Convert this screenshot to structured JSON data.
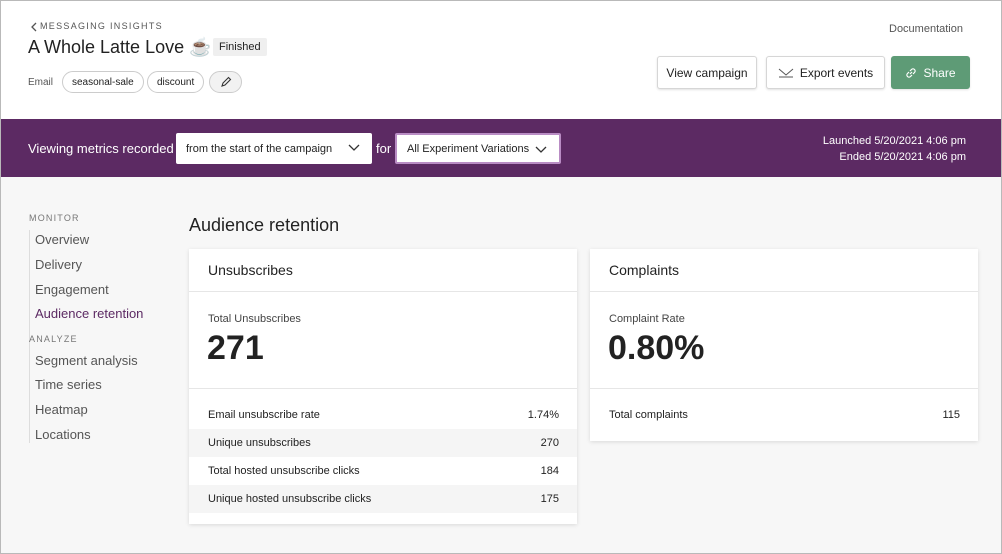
{
  "header": {
    "breadcrumb": "MESSAGING INSIGHTS",
    "title": "A Whole Latte Love ☕",
    "status": "Finished",
    "channel": "Email",
    "tags": [
      "seasonal-sale",
      "discount"
    ],
    "documentation": "Documentation",
    "buttons": [
      "View campaign",
      "Export events",
      "Share"
    ]
  },
  "filter_bar": {
    "label": "Viewing metrics recorded",
    "time_range": "from the start of the campaign",
    "connector": "for",
    "variation": "All Experiment Variations",
    "launched": "Launched 5/20/2021 4:06 pm",
    "ended": "Ended 5/20/2021 4:06 pm"
  },
  "sidebar": {
    "sections": [
      {
        "title": "MONITOR",
        "items": [
          "Overview",
          "Delivery",
          "Engagement",
          "Audience retention"
        ]
      },
      {
        "title": "ANALYZE",
        "items": [
          "Segment analysis",
          "Time series",
          "Heatmap",
          "Locations"
        ]
      }
    ]
  },
  "content": {
    "heading": "Audience retention",
    "cards": [
      {
        "title": "Unsubscribes",
        "metric_label": "Total Unsubscribes",
        "metric_value": "271",
        "rows": [
          [
            "Email unsubscribe rate",
            "1.74%"
          ],
          [
            "Unique unsubscribes",
            "270"
          ],
          [
            "Total hosted unsubscribe clicks",
            "184"
          ],
          [
            "Unique hosted unsubscribe clicks",
            "175"
          ]
        ]
      },
      {
        "title": "Complaints",
        "metric_label": "Complaint Rate",
        "metric_value": "0.80%",
        "rows": [
          [
            "Total complaints",
            "115"
          ]
        ]
      }
    ]
  }
}
